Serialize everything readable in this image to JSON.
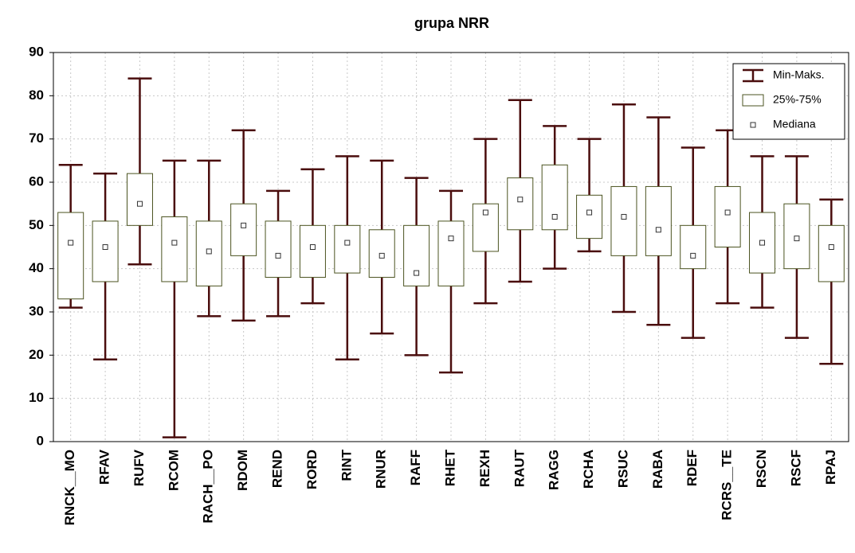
{
  "chart_data": {
    "type": "box",
    "title": "grupa NRR",
    "categories": [
      "RNCK__MO",
      "RFAV",
      "RUFV",
      "RCOM",
      "RACH__PO",
      "RDOM",
      "REND",
      "RORD",
      "RINT",
      "RNUR",
      "RAFF",
      "RHET",
      "REXH",
      "RAUT",
      "RAGG",
      "RCHA",
      "RSUC",
      "RABA",
      "RDEF",
      "RCRS__TE",
      "RSCN",
      "RSCF",
      "RPAJ"
    ],
    "min": [
      31,
      19,
      41,
      1,
      29,
      28,
      29,
      32,
      19,
      25,
      20,
      16,
      32,
      37,
      40,
      44,
      30,
      27,
      24,
      32,
      31,
      24,
      18
    ],
    "q1": [
      33,
      37,
      50,
      37,
      36,
      43,
      38,
      38,
      39,
      38,
      36,
      36,
      44,
      49,
      49,
      47,
      43,
      43,
      40,
      45,
      39,
      40,
      37
    ],
    "median": [
      46,
      45,
      55,
      46,
      44,
      50,
      43,
      45,
      46,
      43,
      39,
      47,
      53,
      56,
      52,
      53,
      52,
      49,
      43,
      53,
      46,
      47,
      45
    ],
    "q3": [
      53,
      51,
      62,
      52,
      51,
      55,
      51,
      50,
      50,
      49,
      50,
      51,
      55,
      61,
      64,
      57,
      59,
      59,
      50,
      59,
      53,
      55,
      50
    ],
    "max": [
      64,
      62,
      84,
      65,
      65,
      72,
      58,
      63,
      66,
      65,
      61,
      58,
      70,
      79,
      73,
      70,
      78,
      75,
      68,
      72,
      66,
      66,
      56
    ],
    "legend": {
      "whisker": "Min-Maks.",
      "box": "25%-75%",
      "median": "Mediana"
    },
    "whisker_color": "#4a0d0d",
    "box_color": "#4b5320",
    "ylim": [
      0,
      90
    ],
    "yticks": [
      0,
      10,
      20,
      30,
      40,
      50,
      60,
      70,
      80,
      90
    ],
    "grid": true,
    "legend_position": "upper right"
  }
}
